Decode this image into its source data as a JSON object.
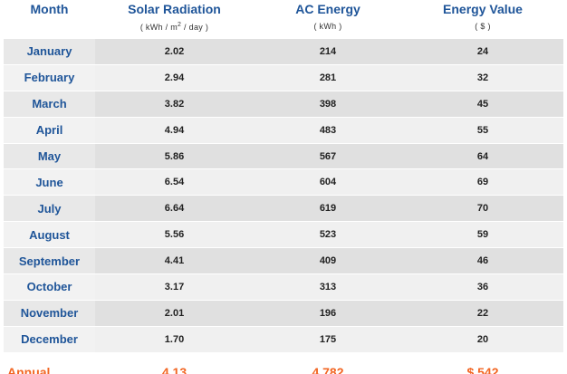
{
  "headers": {
    "month": "Month",
    "solar": "Solar Radiation",
    "solar_unit_prefix": "( kWh / m",
    "solar_unit_sup": "2",
    "solar_unit_suffix": " / day )",
    "ac": "AC Energy",
    "ac_unit": "( kWh )",
    "value": "Energy Value",
    "value_unit": "( $ )"
  },
  "rows": [
    {
      "month": "January",
      "solar": "2.02",
      "ac": "214",
      "value": "24"
    },
    {
      "month": "February",
      "solar": "2.94",
      "ac": "281",
      "value": "32"
    },
    {
      "month": "March",
      "solar": "3.82",
      "ac": "398",
      "value": "45"
    },
    {
      "month": "April",
      "solar": "4.94",
      "ac": "483",
      "value": "55"
    },
    {
      "month": "May",
      "solar": "5.86",
      "ac": "567",
      "value": "64"
    },
    {
      "month": "June",
      "solar": "6.54",
      "ac": "604",
      "value": "69"
    },
    {
      "month": "July",
      "solar": "6.64",
      "ac": "619",
      "value": "70"
    },
    {
      "month": "August",
      "solar": "5.56",
      "ac": "523",
      "value": "59"
    },
    {
      "month": "September",
      "solar": "4.41",
      "ac": "409",
      "value": "46"
    },
    {
      "month": "October",
      "solar": "3.17",
      "ac": "313",
      "value": "36"
    },
    {
      "month": "November",
      "solar": "2.01",
      "ac": "196",
      "value": "22"
    },
    {
      "month": "December",
      "solar": "1.70",
      "ac": "175",
      "value": "20"
    }
  ],
  "annual": {
    "label": "Annual",
    "solar": "4.13",
    "ac": "4,782",
    "value": "$ 542"
  },
  "colors": {
    "header_blue": "#1f5599",
    "annual_orange": "#f26522"
  }
}
